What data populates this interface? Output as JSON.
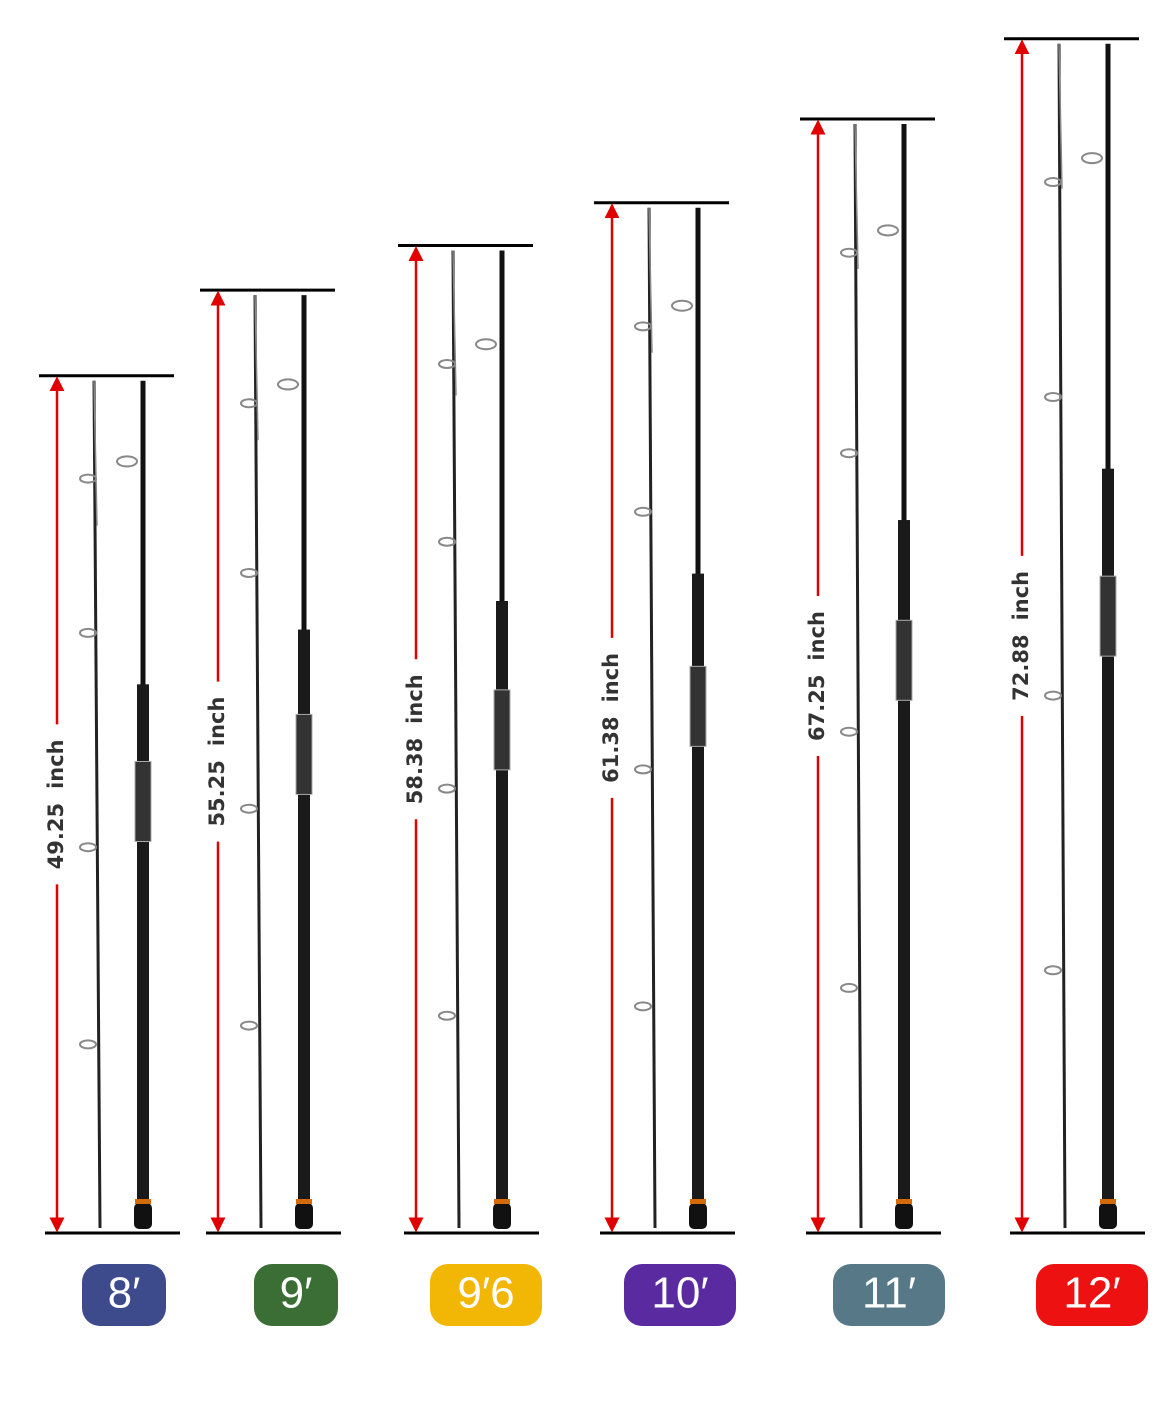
{
  "rods": [
    {
      "label": "8′",
      "length": 49.25,
      "unit": "inch",
      "color": "#3d4a8c"
    },
    {
      "label": "9′",
      "length": 55.25,
      "unit": "inch",
      "color": "#3b6e35"
    },
    {
      "label": "9′6",
      "length": 58.38,
      "unit": "inch",
      "color": "#f2b705"
    },
    {
      "label": "10′",
      "length": 61.38,
      "unit": "inch",
      "color": "#5a2aa0"
    },
    {
      "label": "11′",
      "length": 67.25,
      "unit": "inch",
      "color": "#577987"
    },
    {
      "label": "12′",
      "length": 72.88,
      "unit": "inch",
      "color": "#ee1111"
    }
  ]
}
